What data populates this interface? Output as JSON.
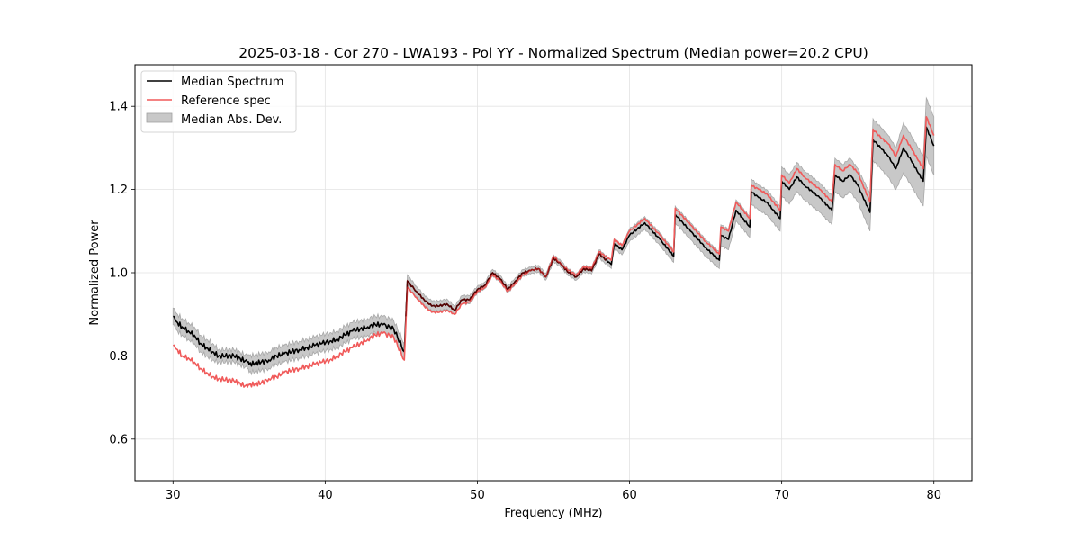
{
  "chart_data": {
    "type": "line",
    "title": "2025-03-18 - Cor 270 - LWA193 - Pol YY - Normalized Spectrum (Median power=20.2 CPU)",
    "xlabel": "Frequency (MHz)",
    "ylabel": "Normalized Power",
    "xlim": [
      27.5,
      82.5
    ],
    "ylim": [
      0.5,
      1.5
    ],
    "xticks": [
      30,
      40,
      50,
      60,
      70,
      80
    ],
    "xtick_labels": [
      "30",
      "40",
      "50",
      "60",
      "70",
      "80"
    ],
    "yticks": [
      0.6,
      0.8,
      1.0,
      1.2,
      1.4
    ],
    "ytick_labels": [
      "0.6",
      "0.8",
      "1.0",
      "1.2",
      "1.4"
    ],
    "grid": true,
    "legend": {
      "placement": "top-left",
      "entries": [
        {
          "label": "Median Spectrum",
          "type": "line",
          "color": "#000000"
        },
        {
          "label": "Reference spec",
          "type": "line",
          "color": "#f05a5a"
        },
        {
          "label": "Median Abs. Dev.",
          "type": "patch",
          "color": "#c8c8c8"
        }
      ]
    },
    "x": [
      30.0,
      30.3,
      30.6,
      31.0,
      31.4,
      31.8,
      32.2,
      32.6,
      33.0,
      34.0,
      34.9,
      35.0,
      35.8,
      36.3,
      36.8,
      37.3,
      37.8,
      38.3,
      38.8,
      39.3,
      39.8,
      40.3,
      40.8,
      41.3,
      41.8,
      42.3,
      42.8,
      43.3,
      43.8,
      44.5,
      45.2,
      45.4,
      46.0,
      46.5,
      47.0,
      47.5,
      48.0,
      48.5,
      49.0,
      49.5,
      50.0,
      50.5,
      51.0,
      51.5,
      52.0,
      52.5,
      53.0,
      53.5,
      54.0,
      54.5,
      55.0,
      55.5,
      56.0,
      56.5,
      57.0,
      57.5,
      58.0,
      58.8,
      59.0,
      59.5,
      60.0,
      60.5,
      61.0,
      62.0,
      62.9,
      63.0,
      64.0,
      65.0,
      65.9,
      66.0,
      66.5,
      67.0,
      67.9,
      68.0,
      68.5,
      69.0,
      69.9,
      70.0,
      70.5,
      71.0,
      71.5,
      72.5,
      73.3,
      73.5,
      74.0,
      74.5,
      75.0,
      75.8,
      76.0,
      76.5,
      77.0,
      77.5,
      78.0,
      78.5,
      79.3,
      79.5,
      80.0
    ],
    "series": [
      {
        "name": "Median Spectrum",
        "color": "#000000",
        "values": [
          0.895,
          0.88,
          0.87,
          0.86,
          0.85,
          0.83,
          0.82,
          0.81,
          0.8,
          0.8,
          0.785,
          0.78,
          0.785,
          0.79,
          0.8,
          0.805,
          0.81,
          0.815,
          0.82,
          0.825,
          0.83,
          0.835,
          0.84,
          0.85,
          0.86,
          0.865,
          0.87,
          0.875,
          0.875,
          0.865,
          0.81,
          0.98,
          0.955,
          0.935,
          0.92,
          0.92,
          0.925,
          0.91,
          0.935,
          0.935,
          0.96,
          0.97,
          1.0,
          0.985,
          0.96,
          0.98,
          1.0,
          1.005,
          1.01,
          0.99,
          1.035,
          1.02,
          1.0,
          0.99,
          1.01,
          1.005,
          1.045,
          1.02,
          1.07,
          1.055,
          1.09,
          1.105,
          1.12,
          1.08,
          1.04,
          1.14,
          1.1,
          1.06,
          1.03,
          1.09,
          1.08,
          1.15,
          1.11,
          1.195,
          1.18,
          1.17,
          1.13,
          1.22,
          1.2,
          1.23,
          1.21,
          1.18,
          1.15,
          1.235,
          1.22,
          1.235,
          1.21,
          1.145,
          1.32,
          1.3,
          1.28,
          1.25,
          1.3,
          1.27,
          1.22,
          1.35,
          1.305
        ]
      },
      {
        "name": "Reference spec",
        "color": "#f05a5a",
        "values": [
          0.825,
          0.815,
          0.8,
          0.795,
          0.785,
          0.77,
          0.76,
          0.75,
          0.745,
          0.74,
          0.725,
          0.73,
          0.735,
          0.745,
          0.75,
          0.76,
          0.765,
          0.77,
          0.775,
          0.78,
          0.785,
          0.79,
          0.8,
          0.81,
          0.82,
          0.83,
          0.84,
          0.85,
          0.855,
          0.845,
          0.79,
          0.965,
          0.94,
          0.92,
          0.905,
          0.905,
          0.91,
          0.9,
          0.925,
          0.93,
          0.955,
          0.965,
          0.995,
          0.98,
          0.955,
          0.975,
          0.995,
          1.005,
          1.01,
          0.99,
          1.04,
          1.02,
          1.005,
          0.995,
          1.015,
          1.01,
          1.05,
          1.03,
          1.08,
          1.065,
          1.1,
          1.115,
          1.13,
          1.09,
          1.05,
          1.155,
          1.115,
          1.075,
          1.045,
          1.11,
          1.1,
          1.17,
          1.13,
          1.21,
          1.2,
          1.19,
          1.15,
          1.235,
          1.215,
          1.25,
          1.23,
          1.2,
          1.17,
          1.26,
          1.245,
          1.26,
          1.24,
          1.17,
          1.345,
          1.325,
          1.31,
          1.28,
          1.33,
          1.3,
          1.25,
          1.375,
          1.33
        ]
      }
    ],
    "band": {
      "name": "Median Abs. Dev.",
      "color": "#c8c8c8",
      "half_width": [
        0.02,
        0.02,
        0.02,
        0.02,
        0.02,
        0.02,
        0.02,
        0.02,
        0.015,
        0.015,
        0.015,
        0.02,
        0.02,
        0.02,
        0.02,
        0.02,
        0.02,
        0.02,
        0.02,
        0.02,
        0.02,
        0.02,
        0.02,
        0.02,
        0.02,
        0.02,
        0.02,
        0.02,
        0.02,
        0.02,
        0.02,
        0.015,
        0.012,
        0.012,
        0.012,
        0.012,
        0.012,
        0.01,
        0.01,
        0.01,
        0.008,
        0.008,
        0.008,
        0.008,
        0.008,
        0.008,
        0.008,
        0.008,
        0.008,
        0.008,
        0.008,
        0.008,
        0.008,
        0.008,
        0.008,
        0.008,
        0.01,
        0.01,
        0.012,
        0.012,
        0.015,
        0.015,
        0.015,
        0.015,
        0.015,
        0.02,
        0.02,
        0.02,
        0.02,
        0.025,
        0.025,
        0.025,
        0.025,
        0.03,
        0.03,
        0.03,
        0.03,
        0.035,
        0.035,
        0.035,
        0.035,
        0.035,
        0.035,
        0.04,
        0.04,
        0.04,
        0.04,
        0.045,
        0.05,
        0.05,
        0.05,
        0.05,
        0.06,
        0.06,
        0.06,
        0.07,
        0.07
      ]
    }
  }
}
